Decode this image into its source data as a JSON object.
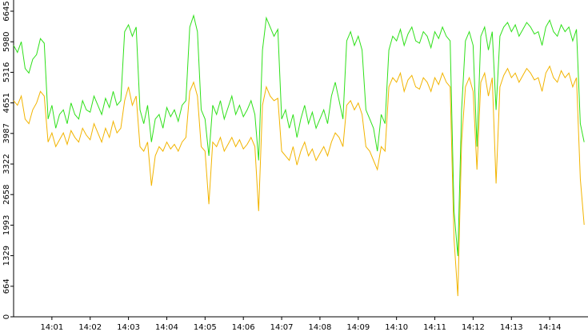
{
  "chart_data": {
    "type": "line",
    "categories": [
      null,
      null,
      null,
      null,
      null,
      null,
      null,
      null,
      null,
      null,
      "14:01",
      null,
      null,
      null,
      null,
      null,
      null,
      null,
      null,
      null,
      "14:02",
      null,
      null,
      null,
      null,
      null,
      null,
      null,
      null,
      null,
      "14:03",
      null,
      null,
      null,
      null,
      null,
      null,
      null,
      null,
      null,
      "14:04",
      null,
      null,
      null,
      null,
      null,
      null,
      null,
      null,
      null,
      "14:05",
      null,
      null,
      null,
      null,
      null,
      null,
      null,
      null,
      null,
      "14:06",
      null,
      null,
      null,
      null,
      null,
      null,
      null,
      null,
      null,
      "14:07",
      null,
      null,
      null,
      null,
      null,
      null,
      null,
      null,
      null,
      "14:08",
      null,
      null,
      null,
      null,
      null,
      null,
      null,
      null,
      null,
      "14:09",
      null,
      null,
      null,
      null,
      null,
      null,
      null,
      null,
      null,
      "14:10",
      null,
      null,
      null,
      null,
      null,
      null,
      null,
      null,
      null,
      "14:11",
      null,
      null,
      null,
      null,
      null,
      null,
      null,
      null,
      null,
      "14:12",
      null,
      null,
      null,
      null,
      null,
      null,
      null,
      null,
      null,
      "14:13",
      null,
      null,
      null,
      null,
      null,
      null,
      null,
      null,
      null,
      "14:14",
      null,
      null,
      null,
      null,
      null,
      null,
      null,
      null,
      null
    ],
    "series": [
      {
        "color": "#2fe01a",
        "values": [
          5900,
          5750,
          5980,
          5400,
          5300,
          5600,
          5700,
          6050,
          5950,
          4300,
          4600,
          4100,
          4400,
          4500,
          4200,
          4650,
          4400,
          4300,
          4700,
          4500,
          4450,
          4800,
          4600,
          4400,
          4750,
          4550,
          4900,
          4600,
          4700,
          6200,
          6350,
          6100,
          6300,
          4500,
          4200,
          4600,
          3800,
          4300,
          4400,
          4100,
          4550,
          4350,
          4500,
          4250,
          4600,
          4700,
          6300,
          6550,
          6200,
          4500,
          4300,
          3500,
          4600,
          4400,
          4700,
          4300,
          4550,
          4800,
          4400,
          4600,
          4350,
          4500,
          4700,
          4400,
          3400,
          5800,
          6500,
          6300,
          6100,
          6250,
          4300,
          4500,
          4100,
          4400,
          3900,
          4300,
          4600,
          4200,
          4450,
          4100,
          4300,
          4500,
          4200,
          4800,
          5100,
          4700,
          4300,
          6000,
          6200,
          5900,
          6100,
          5800,
          4500,
          4300,
          4100,
          3600,
          4400,
          4200,
          5800,
          6100,
          6000,
          6250,
          5900,
          6150,
          6300,
          6000,
          5950,
          6200,
          6100,
          5850,
          6200,
          6050,
          6300,
          6100,
          6000,
          2300,
          1320,
          4500,
          6000,
          6200,
          5900,
          3700,
          6100,
          6300,
          5800,
          6200,
          4500,
          6100,
          6300,
          6400,
          6200,
          6350,
          6100,
          6250,
          6400,
          6300,
          6150,
          6200,
          5900,
          6300,
          6450,
          6200,
          6100,
          6350,
          6200,
          6300,
          6000,
          6250,
          4200,
          3800
        ]
      },
      {
        "color": "#f2b400",
        "values": [
          4700,
          4600,
          4800,
          4300,
          4200,
          4500,
          4650,
          4900,
          4800,
          3800,
          4000,
          3700,
          3850,
          4000,
          3750,
          4050,
          3900,
          3800,
          4100,
          3950,
          3850,
          4200,
          4000,
          3800,
          4100,
          3900,
          4250,
          4000,
          4100,
          4700,
          5000,
          4600,
          4800,
          3700,
          3600,
          3800,
          2850,
          3500,
          3700,
          3600,
          3800,
          3650,
          3750,
          3600,
          3800,
          3900,
          4900,
          5100,
          4800,
          3700,
          3600,
          2450,
          3800,
          3700,
          3900,
          3600,
          3750,
          3900,
          3700,
          3850,
          3650,
          3750,
          3900,
          3700,
          2300,
          4600,
          5000,
          4800,
          4700,
          4750,
          3600,
          3500,
          3400,
          3700,
          3300,
          3600,
          3800,
          3500,
          3650,
          3400,
          3550,
          3700,
          3500,
          3800,
          4000,
          3900,
          3700,
          4600,
          4700,
          4500,
          4650,
          4400,
          3700,
          3600,
          3400,
          3200,
          3700,
          3600,
          5000,
          5200,
          5100,
          5300,
          4900,
          5150,
          5250,
          5000,
          4950,
          5200,
          5100,
          4900,
          5200,
          5050,
          5300,
          5100,
          5000,
          1700,
          450,
          3800,
          5000,
          5200,
          4900,
          3200,
          5100,
          5300,
          4800,
          5200,
          2900,
          5000,
          5250,
          5400,
          5200,
          5300,
          5100,
          5250,
          5400,
          5300,
          5150,
          5200,
          4900,
          5300,
          5450,
          5200,
          5100,
          5350,
          5200,
          5300,
          5000,
          5200,
          3000,
          2000
        ]
      }
    ],
    "ylim": [
      0,
      6645
    ],
    "yticks": [
      0,
      664,
      1329,
      1993,
      2658,
      3322,
      3987,
      4651,
      5316,
      5980,
      6645
    ]
  }
}
